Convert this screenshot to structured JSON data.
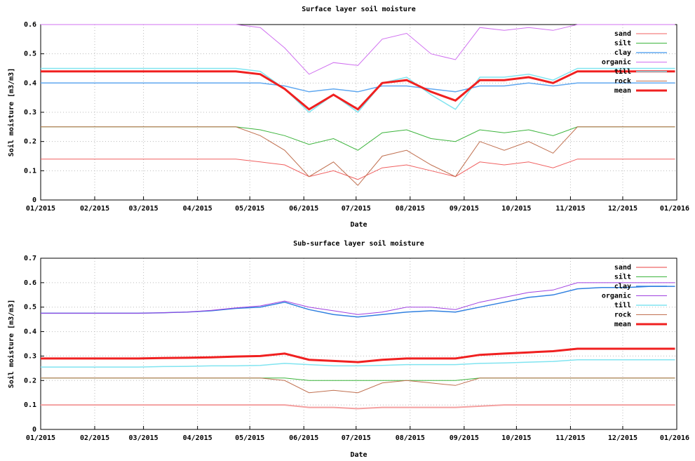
{
  "chart_data": [
    {
      "type": "line",
      "title": "Surface layer soil moisture",
      "x_label": "Date",
      "y_label": "Soil moisture [m3/m3]",
      "x": [
        0,
        14,
        28,
        42,
        56,
        70,
        84,
        98,
        112,
        126,
        140,
        154,
        168,
        182,
        196,
        210,
        224,
        238,
        252,
        266,
        280,
        294,
        308,
        322,
        336,
        350,
        364
      ],
      "xlim": [
        0,
        365
      ],
      "xticks": [
        {
          "value": 0,
          "label": "01/2015"
        },
        {
          "value": 31,
          "label": "02/2015"
        },
        {
          "value": 59,
          "label": "03/2015"
        },
        {
          "value": 90,
          "label": "04/2015"
        },
        {
          "value": 120,
          "label": "05/2015"
        },
        {
          "value": 151,
          "label": "06/2015"
        },
        {
          "value": 181,
          "label": "07/2015"
        },
        {
          "value": 212,
          "label": "08/2015"
        },
        {
          "value": 243,
          "label": "09/2015"
        },
        {
          "value": 273,
          "label": "10/2015"
        },
        {
          "value": 304,
          "label": "11/2015"
        },
        {
          "value": 334,
          "label": "12/2015"
        },
        {
          "value": 365,
          "label": "01/2016"
        }
      ],
      "ylim": [
        0,
        0.6
      ],
      "yticks": [
        0,
        0.1,
        0.2,
        0.3,
        0.4,
        0.5,
        0.6
      ],
      "grid": true,
      "legend": "top-right",
      "series": [
        {
          "name": "sand",
          "color": "#f06060",
          "line_width": 1,
          "values": [
            0.14,
            0.14,
            0.14,
            0.14,
            0.14,
            0.14,
            0.14,
            0.14,
            0.14,
            0.13,
            0.12,
            0.08,
            0.1,
            0.07,
            0.11,
            0.12,
            0.1,
            0.08,
            0.13,
            0.12,
            0.13,
            0.11,
            0.14,
            0.14,
            0.14,
            0.14,
            0.14
          ]
        },
        {
          "name": "silt",
          "color": "#3cb43c",
          "line_width": 1,
          "values": [
            0.25,
            0.25,
            0.25,
            0.25,
            0.25,
            0.25,
            0.25,
            0.25,
            0.25,
            0.24,
            0.22,
            0.19,
            0.21,
            0.17,
            0.23,
            0.24,
            0.21,
            0.2,
            0.24,
            0.23,
            0.24,
            0.22,
            0.25,
            0.25,
            0.25,
            0.25,
            0.25
          ]
        },
        {
          "name": "clay",
          "color": "#60a8f0",
          "line_width": 1.5,
          "values": [
            0.4,
            0.4,
            0.4,
            0.4,
            0.4,
            0.4,
            0.4,
            0.4,
            0.4,
            0.4,
            0.39,
            0.37,
            0.38,
            0.37,
            0.39,
            0.39,
            0.38,
            0.37,
            0.39,
            0.39,
            0.4,
            0.39,
            0.4,
            0.4,
            0.4,
            0.4,
            0.4
          ]
        },
        {
          "name": "organic",
          "color": "#d070f0",
          "line_width": 1,
          "values": [
            0.6,
            0.6,
            0.6,
            0.6,
            0.6,
            0.6,
            0.6,
            0.6,
            0.6,
            0.59,
            0.52,
            0.43,
            0.47,
            0.46,
            0.55,
            0.57,
            0.5,
            0.48,
            0.59,
            0.58,
            0.59,
            0.58,
            0.6,
            0.6,
            0.6,
            0.6,
            0.6
          ]
        },
        {
          "name": "till",
          "color": "#80e4f0",
          "line_width": 1.5,
          "values": [
            0.45,
            0.45,
            0.45,
            0.45,
            0.45,
            0.45,
            0.45,
            0.45,
            0.45,
            0.44,
            0.38,
            0.3,
            0.36,
            0.3,
            0.4,
            0.42,
            0.36,
            0.31,
            0.42,
            0.42,
            0.43,
            0.41,
            0.45,
            0.45,
            0.45,
            0.45,
            0.45
          ]
        },
        {
          "name": "rock",
          "color": "#c07050",
          "line_width": 1,
          "values": [
            0.25,
            0.25,
            0.25,
            0.25,
            0.25,
            0.25,
            0.25,
            0.25,
            0.25,
            0.22,
            0.17,
            0.08,
            0.13,
            0.05,
            0.15,
            0.17,
            0.12,
            0.08,
            0.2,
            0.17,
            0.2,
            0.16,
            0.25,
            0.25,
            0.25,
            0.25,
            0.25
          ]
        },
        {
          "name": "mean",
          "color": "#f02020",
          "line_width": 3,
          "values": [
            0.44,
            0.44,
            0.44,
            0.44,
            0.44,
            0.44,
            0.44,
            0.44,
            0.44,
            0.43,
            0.38,
            0.31,
            0.36,
            0.31,
            0.4,
            0.41,
            0.37,
            0.34,
            0.41,
            0.41,
            0.42,
            0.4,
            0.44,
            0.44,
            0.44,
            0.44,
            0.44
          ]
        }
      ]
    },
    {
      "type": "line",
      "title": "Sub-surface layer soil moisture",
      "x_label": "Date",
      "y_label": "Soil moisture [m3/m3]",
      "x": [
        0,
        14,
        28,
        42,
        56,
        70,
        84,
        98,
        112,
        126,
        140,
        154,
        168,
        182,
        196,
        210,
        224,
        238,
        252,
        266,
        280,
        294,
        308,
        322,
        336,
        350,
        364
      ],
      "xlim": [
        0,
        365
      ],
      "xticks": [
        {
          "value": 0,
          "label": "01/2015"
        },
        {
          "value": 31,
          "label": "02/2015"
        },
        {
          "value": 59,
          "label": "03/2015"
        },
        {
          "value": 90,
          "label": "04/2015"
        },
        {
          "value": 120,
          "label": "05/2015"
        },
        {
          "value": 151,
          "label": "06/2015"
        },
        {
          "value": 181,
          "label": "07/2015"
        },
        {
          "value": 212,
          "label": "08/2015"
        },
        {
          "value": 243,
          "label": "09/2015"
        },
        {
          "value": 273,
          "label": "10/2015"
        },
        {
          "value": 304,
          "label": "11/2015"
        },
        {
          "value": 334,
          "label": "12/2015"
        },
        {
          "value": 365,
          "label": "01/2016"
        }
      ],
      "ylim": [
        0,
        0.7
      ],
      "yticks": [
        0,
        0.1,
        0.2,
        0.3,
        0.4,
        0.5,
        0.6,
        0.7
      ],
      "grid": true,
      "legend": "top-right",
      "series": [
        {
          "name": "sand",
          "color": "#f4a0a0",
          "line_width": 2,
          "values": [
            0.1,
            0.1,
            0.1,
            0.1,
            0.1,
            0.1,
            0.1,
            0.1,
            0.1,
            0.1,
            0.1,
            0.09,
            0.09,
            0.085,
            0.09,
            0.09,
            0.09,
            0.09,
            0.095,
            0.1,
            0.1,
            0.1,
            0.1,
            0.1,
            0.1,
            0.1,
            0.1
          ]
        },
        {
          "name": "silt",
          "color": "#3cb43c",
          "line_width": 1,
          "values": [
            0.21,
            0.21,
            0.21,
            0.21,
            0.21,
            0.21,
            0.21,
            0.21,
            0.21,
            0.21,
            0.21,
            0.2,
            0.2,
            0.2,
            0.2,
            0.2,
            0.2,
            0.2,
            0.21,
            0.21,
            0.21,
            0.21,
            0.21,
            0.21,
            0.21,
            0.21,
            0.21
          ]
        },
        {
          "name": "clay",
          "color": "#3080e0",
          "line_width": 1.5,
          "values": [
            0.475,
            0.475,
            0.475,
            0.475,
            0.475,
            0.477,
            0.48,
            0.485,
            0.495,
            0.5,
            0.52,
            0.49,
            0.47,
            0.46,
            0.47,
            0.48,
            0.485,
            0.48,
            0.5,
            0.52,
            0.54,
            0.55,
            0.575,
            0.58,
            0.58,
            0.585,
            0.585
          ]
        },
        {
          "name": "organic",
          "color": "#a040e0",
          "line_width": 1,
          "values": [
            0.475,
            0.475,
            0.475,
            0.475,
            0.475,
            0.477,
            0.48,
            0.487,
            0.497,
            0.505,
            0.525,
            0.5,
            0.485,
            0.47,
            0.48,
            0.5,
            0.5,
            0.49,
            0.52,
            0.54,
            0.56,
            0.57,
            0.6,
            0.6,
            0.6,
            0.6,
            0.6
          ]
        },
        {
          "name": "till",
          "color": "#80e4f0",
          "line_width": 1.5,
          "values": [
            0.255,
            0.255,
            0.255,
            0.255,
            0.255,
            0.257,
            0.258,
            0.26,
            0.26,
            0.262,
            0.27,
            0.265,
            0.26,
            0.26,
            0.262,
            0.265,
            0.265,
            0.265,
            0.27,
            0.272,
            0.275,
            0.278,
            0.285,
            0.285,
            0.285,
            0.285,
            0.285
          ]
        },
        {
          "name": "rock",
          "color": "#c07050",
          "line_width": 1,
          "values": [
            0.21,
            0.21,
            0.21,
            0.21,
            0.21,
            0.21,
            0.21,
            0.21,
            0.21,
            0.21,
            0.2,
            0.15,
            0.16,
            0.15,
            0.19,
            0.2,
            0.19,
            0.18,
            0.21,
            0.21,
            0.21,
            0.21,
            0.21,
            0.21,
            0.21,
            0.21,
            0.21
          ]
        },
        {
          "name": "mean",
          "color": "#f02020",
          "line_width": 3,
          "values": [
            0.29,
            0.29,
            0.29,
            0.29,
            0.29,
            0.292,
            0.293,
            0.295,
            0.298,
            0.3,
            0.31,
            0.285,
            0.28,
            0.275,
            0.285,
            0.29,
            0.29,
            0.29,
            0.305,
            0.31,
            0.315,
            0.32,
            0.33,
            0.33,
            0.33,
            0.33,
            0.33
          ]
        }
      ]
    }
  ]
}
